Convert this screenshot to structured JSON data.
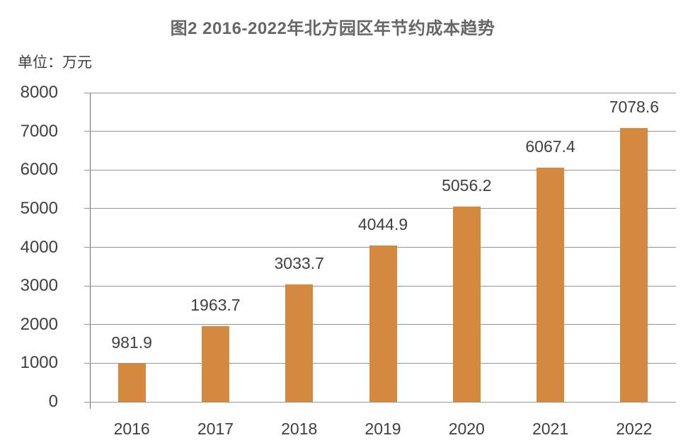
{
  "chart_data": {
    "type": "bar",
    "title": "图2 2016-2022年北方园区年节约成本趋势",
    "unit": "单位：万元",
    "categories": [
      "2016",
      "2017",
      "2018",
      "2019",
      "2020",
      "2021",
      "2022"
    ],
    "values": [
      981.9,
      1963.7,
      3033.7,
      4044.9,
      5056.2,
      6067.4,
      7078.6
    ],
    "value_labels": [
      "981.9",
      "1963.7",
      "3033.7",
      "4044.9",
      "5056.2",
      "6067.4",
      "7078.6"
    ],
    "ylim": [
      0,
      8000
    ],
    "ytick_step": 1000,
    "yticks": [
      0,
      1000,
      2000,
      3000,
      4000,
      5000,
      6000,
      7000,
      8000
    ],
    "grid": true,
    "legend": false,
    "colors": {
      "bar": "#D5893E",
      "grid": "#969696",
      "axis": "#6E6E6E",
      "label_text": "#3F3F3F",
      "title_text": "#666666"
    }
  }
}
